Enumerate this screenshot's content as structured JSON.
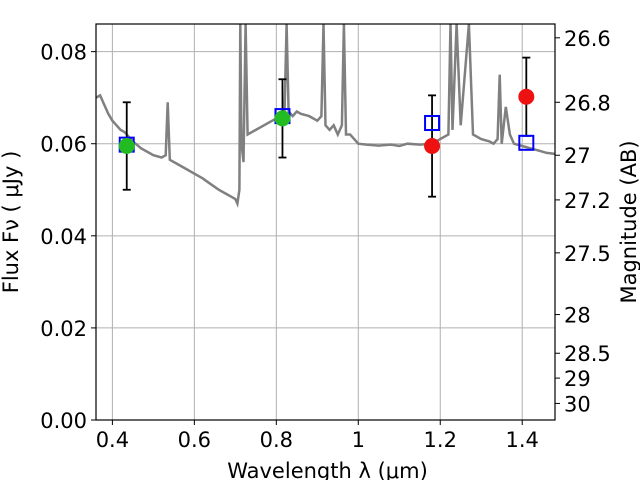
{
  "chart_data": {
    "type": "scatter",
    "title": "",
    "xlabel": "Wavelength  λ (μm)",
    "ylabel": "Flux  Fν  ( μJy )",
    "ylabel_right": "Magnitude (AB)",
    "xlim": [
      0.36,
      1.48
    ],
    "ylim": [
      0.0,
      0.086
    ],
    "grid": true,
    "x_ticks": [
      0.4,
      0.6,
      0.8,
      1.0,
      1.2,
      1.4
    ],
    "x_tick_labels": [
      "0.4",
      "0.6",
      "0.8",
      "1",
      "1.2",
      "1.4"
    ],
    "y_ticks": [
      0.0,
      0.02,
      0.04,
      0.06,
      0.08
    ],
    "y_tick_labels": [
      "0.00",
      "0.02",
      "0.04",
      "0.06",
      "0.08"
    ],
    "right_ticks": [
      {
        "label": "26.6",
        "flux": 0.083
      },
      {
        "label": "26.8",
        "flux": 0.069
      },
      {
        "label": "27",
        "flux": 0.0575
      },
      {
        "label": "27.2",
        "flux": 0.0478
      },
      {
        "label": "27.5",
        "flux": 0.0363
      },
      {
        "label": "28",
        "flux": 0.0229
      },
      {
        "label": "28.5",
        "flux": 0.0145
      },
      {
        "label": "29",
        "flux": 0.0091
      },
      {
        "label": "30",
        "flux": 0.0036
      }
    ],
    "series": [
      {
        "kind": "model_spectrum",
        "color": "#808080",
        "points": [
          [
            0.36,
            0.07
          ],
          [
            0.37,
            0.0705
          ],
          [
            0.38,
            0.0685
          ],
          [
            0.39,
            0.0665
          ],
          [
            0.4,
            0.065
          ],
          [
            0.41,
            0.064
          ],
          [
            0.42,
            0.063
          ],
          [
            0.43,
            0.0625
          ],
          [
            0.44,
            0.0615
          ],
          [
            0.45,
            0.0605
          ],
          [
            0.47,
            0.059
          ],
          [
            0.5,
            0.0575
          ],
          [
            0.52,
            0.057
          ],
          [
            0.53,
            0.0575
          ],
          [
            0.535,
            0.069
          ],
          [
            0.54,
            0.0565
          ],
          [
            0.56,
            0.0555
          ],
          [
            0.58,
            0.0545
          ],
          [
            0.6,
            0.0535
          ],
          [
            0.62,
            0.0525
          ],
          [
            0.64,
            0.0512
          ],
          [
            0.66,
            0.05
          ],
          [
            0.68,
            0.049
          ],
          [
            0.69,
            0.0485
          ],
          [
            0.7,
            0.048
          ],
          [
            0.705,
            0.047
          ],
          [
            0.71,
            0.05
          ],
          [
            0.712,
            0.086
          ],
          [
            0.715,
            0.06
          ],
          [
            0.72,
            0.056
          ],
          [
            0.725,
            0.086
          ],
          [
            0.73,
            0.062
          ],
          [
            0.75,
            0.063
          ],
          [
            0.77,
            0.064
          ],
          [
            0.79,
            0.065
          ],
          [
            0.8,
            0.0655
          ],
          [
            0.81,
            0.066
          ],
          [
            0.82,
            0.0665
          ],
          [
            0.825,
            0.086
          ],
          [
            0.83,
            0.067
          ],
          [
            0.84,
            0.066
          ],
          [
            0.85,
            0.067
          ],
          [
            0.86,
            0.0665
          ],
          [
            0.88,
            0.066
          ],
          [
            0.9,
            0.065
          ],
          [
            0.91,
            0.066
          ],
          [
            0.915,
            0.086
          ],
          [
            0.92,
            0.064
          ],
          [
            0.93,
            0.063
          ],
          [
            0.94,
            0.064
          ],
          [
            0.95,
            0.062
          ],
          [
            0.96,
            0.064
          ],
          [
            0.965,
            0.086
          ],
          [
            0.97,
            0.062
          ],
          [
            0.98,
            0.062
          ],
          [
            0.99,
            0.061
          ],
          [
            1.0,
            0.06
          ],
          [
            1.02,
            0.0598
          ],
          [
            1.05,
            0.0596
          ],
          [
            1.08,
            0.0598
          ],
          [
            1.1,
            0.0595
          ],
          [
            1.12,
            0.06
          ],
          [
            1.15,
            0.0598
          ],
          [
            1.18,
            0.06
          ],
          [
            1.2,
            0.061
          ],
          [
            1.22,
            0.062
          ],
          [
            1.225,
            0.086
          ],
          [
            1.23,
            0.063
          ],
          [
            1.24,
            0.086
          ],
          [
            1.25,
            0.064
          ],
          [
            1.27,
            0.086
          ],
          [
            1.28,
            0.062
          ],
          [
            1.3,
            0.061
          ],
          [
            1.32,
            0.0605
          ],
          [
            1.33,
            0.06
          ],
          [
            1.34,
            0.061
          ],
          [
            1.345,
            0.075
          ],
          [
            1.35,
            0.06
          ],
          [
            1.36,
            0.068
          ],
          [
            1.37,
            0.062
          ],
          [
            1.38,
            0.06
          ],
          [
            1.4,
            0.0595
          ],
          [
            1.42,
            0.059
          ],
          [
            1.44,
            0.0585
          ],
          [
            1.46,
            0.058
          ],
          [
            1.48,
            0.0578
          ]
        ]
      },
      {
        "kind": "model_photometry",
        "marker": "open-square",
        "color": "#0000ff",
        "points": [
          [
            0.435,
            0.0598
          ],
          [
            0.815,
            0.066
          ],
          [
            1.18,
            0.0645
          ],
          [
            1.41,
            0.0602
          ]
        ]
      },
      {
        "kind": "observed",
        "marker": "circle",
        "color": "#22bb22",
        "points": [
          {
            "x": 0.435,
            "y": 0.0595,
            "yerr": [
              0.0095,
              0.0095
            ]
          },
          {
            "x": 0.815,
            "y": 0.0655,
            "yerr": [
              0.0085,
              0.0085
            ]
          }
        ]
      },
      {
        "kind": "observed",
        "marker": "circle",
        "color": "#ee1111",
        "points": [
          {
            "x": 1.18,
            "y": 0.0595,
            "yerr": [
              0.011,
              0.011
            ]
          },
          {
            "x": 1.41,
            "y": 0.0702,
            "yerr": [
              0.0085,
              0.0085
            ]
          }
        ]
      }
    ]
  }
}
